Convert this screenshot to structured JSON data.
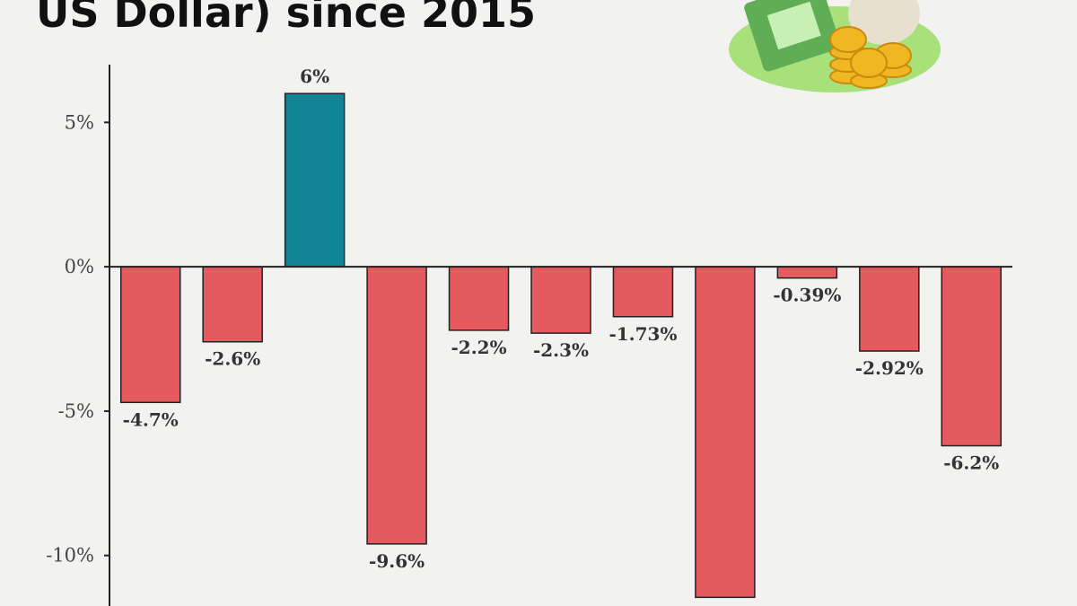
{
  "chart_data": {
    "type": "bar",
    "title": "US Dollar) since 2015",
    "values": [
      -4.7,
      -2.6,
      6,
      -9.6,
      -2.2,
      -2.3,
      -1.73,
      -11.45,
      -0.39,
      -2.92,
      -6.2
    ],
    "value_labels": [
      "-4.7%",
      "-2.6%",
      "6%",
      "-9.6%",
      "-2.2%",
      "-2.3%",
      "-1.73%",
      null,
      "-0.39%",
      "-2.92%",
      "-6.2%"
    ],
    "color_positive": "#0e8494",
    "color_negative": "#e55a5f",
    "ylim": [
      -11.75,
      7
    ],
    "yticks": [
      {
        "value": 5,
        "label": "5%"
      },
      {
        "value": 0,
        "label": "0%"
      },
      {
        "value": -5,
        "label": "-5%"
      },
      {
        "value": -10,
        "label": "-10%"
      }
    ],
    "grid": false
  }
}
